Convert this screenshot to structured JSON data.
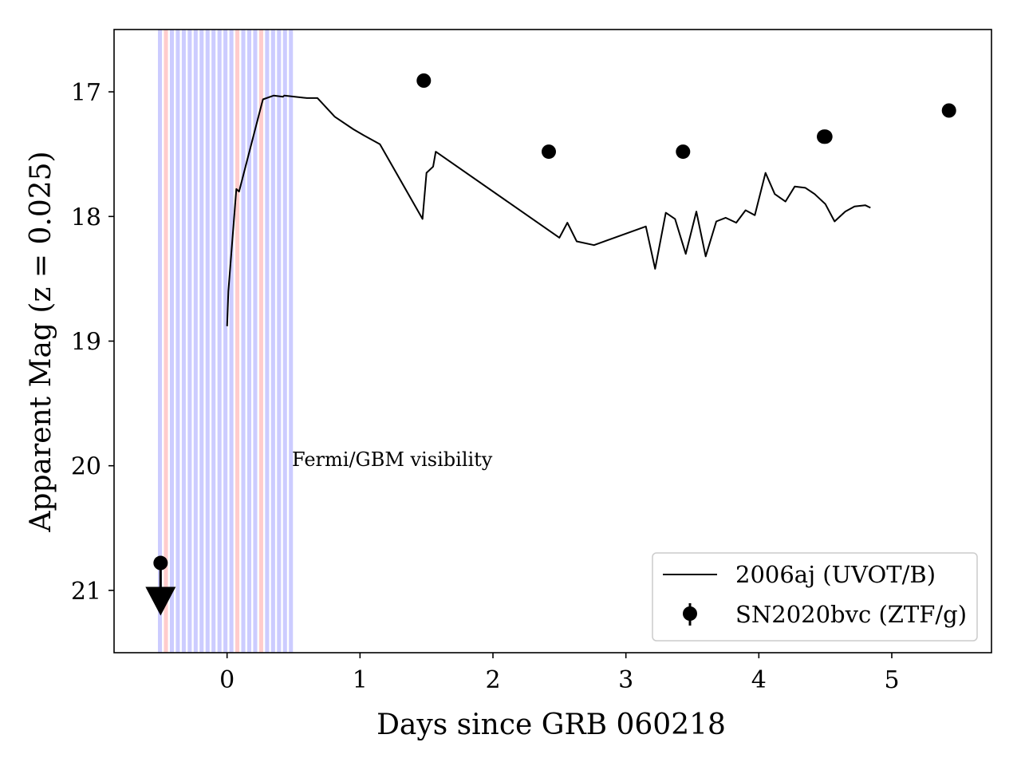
{
  "chart_data": {
    "type": "line",
    "xlabel": "Days since GRB 060218",
    "ylabel": "Apparent Mag (z = 0.025)",
    "xlim": [
      -0.85,
      5.75
    ],
    "ylim": [
      21.5,
      16.5
    ],
    "y_inverted": true,
    "grid": false,
    "legend_position": "lower-right",
    "x_ticks": [
      0,
      1,
      2,
      3,
      4,
      5
    ],
    "y_ticks": [
      17,
      18,
      19,
      20,
      21
    ],
    "annotation": "Fermi/GBM visibility",
    "visibility_bands": {
      "color_default": "#ccccff",
      "color_alt": "#ffcccc",
      "x_start": -0.52,
      "x_end": 0.51,
      "count": 23,
      "alt_indices": [
        1,
        13,
        17
      ]
    },
    "series": [
      {
        "name": "2006aj (UVOT/B)",
        "style": "line",
        "color": "#000000",
        "x": [
          0.0,
          0.01,
          0.07,
          0.09,
          0.26,
          0.27,
          0.35,
          0.42,
          0.43,
          0.6,
          0.68,
          0.81,
          0.95,
          1.03,
          1.15,
          1.47,
          1.5,
          1.55,
          1.57,
          2.5,
          2.56,
          2.63,
          2.76,
          3.15,
          3.22,
          3.3,
          3.37,
          3.45,
          3.53,
          3.6,
          3.68,
          3.75,
          3.83,
          3.9,
          3.97,
          4.05,
          4.12,
          4.2,
          4.27,
          4.35,
          4.42,
          4.5,
          4.57,
          4.65,
          4.72,
          4.8,
          4.84
        ],
        "y": [
          18.88,
          18.6,
          17.78,
          17.8,
          17.1,
          17.06,
          17.03,
          17.04,
          17.03,
          17.05,
          17.05,
          17.2,
          17.3,
          17.35,
          17.42,
          18.02,
          17.65,
          17.6,
          17.48,
          18.17,
          18.05,
          18.2,
          18.23,
          18.08,
          18.42,
          17.97,
          18.02,
          18.3,
          17.96,
          18.32,
          18.04,
          18.01,
          18.05,
          17.95,
          17.99,
          17.65,
          17.82,
          17.88,
          17.76,
          17.77,
          17.82,
          17.9,
          18.04,
          17.96,
          17.92,
          17.91,
          17.93
        ]
      },
      {
        "name": "SN2020bvc (ZTF/g)",
        "style": "points",
        "color": "#000000",
        "x": [
          1.48,
          2.42,
          3.43,
          4.49,
          4.5,
          5.43
        ],
        "y": [
          16.91,
          17.48,
          17.48,
          17.36,
          17.36,
          17.15
        ]
      }
    ],
    "upper_limit": {
      "x": -0.5,
      "y": 20.78
    }
  }
}
